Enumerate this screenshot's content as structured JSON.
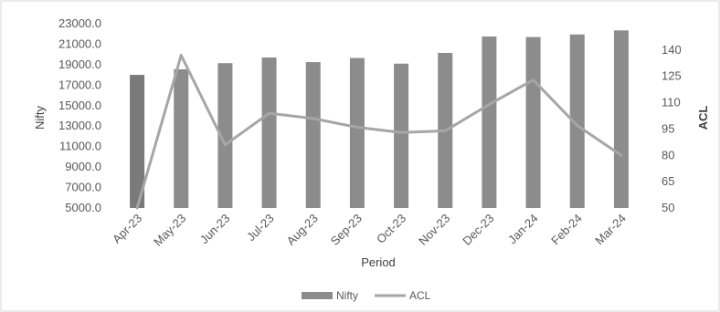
{
  "chart_data": {
    "type": "bar",
    "categories": [
      "Apr-23",
      "May-23",
      "Jun-23",
      "Jul-23",
      "Aug-23",
      "Sep-23",
      "Oct-23",
      "Nov-23",
      "Dec-23",
      "Jan-24",
      "Feb-24",
      "Mar-24"
    ],
    "series": [
      {
        "name": "Nifty",
        "type": "bar",
        "axis": "left",
        "color": "#8c8c8c",
        "first_color": "#7a7a7a",
        "values": [
          18000,
          18550,
          19150,
          19700,
          19250,
          19650,
          19100,
          20150,
          21750,
          21700,
          21950,
          22350
        ]
      },
      {
        "name": "ACL",
        "type": "line",
        "axis": "right",
        "color": "#a6a6a6",
        "values": [
          48,
          137,
          86,
          104,
          101,
          96,
          93,
          94,
          109,
          123,
          97,
          80
        ]
      }
    ],
    "title": "",
    "xlabel": "Period",
    "ylabel": "Nifty",
    "y2label": "ACL",
    "ylim": [
      5000,
      23000
    ],
    "y2lim": [
      50,
      155
    ],
    "yticks": [
      "23000.0",
      "21000.0",
      "19000.0",
      "17000.0",
      "15000.0",
      "13000.0",
      "11000.0",
      "9000.0",
      "7000.0",
      "5000.0"
    ],
    "y2ticks": [
      "140",
      "125",
      "110",
      "95",
      "80",
      "65",
      "50"
    ],
    "grid": false,
    "legend": "bottom"
  }
}
